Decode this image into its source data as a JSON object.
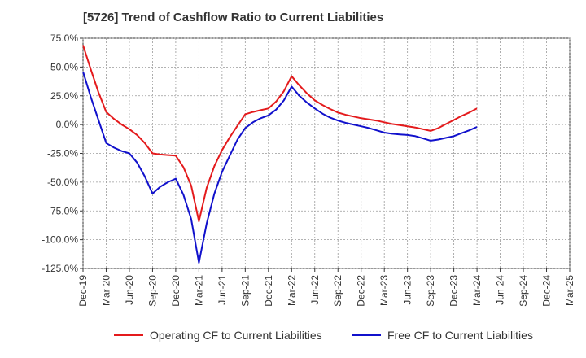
{
  "title": "[5726]  Trend of Cashflow Ratio to Current Liabilities",
  "chart_data": {
    "type": "line",
    "title": "[5726]  Trend of Cashflow Ratio to Current Liabilities",
    "x_ticks": [
      "Dec-19",
      "Mar-20",
      "Jun-20",
      "Sep-20",
      "Dec-20",
      "Mar-21",
      "Jun-21",
      "Sep-21",
      "Dec-21",
      "Mar-22",
      "Jun-22",
      "Sep-22",
      "Dec-22",
      "Mar-23",
      "Jun-23",
      "Sep-23",
      "Dec-23",
      "Mar-24",
      "Jun-24",
      "Sep-24",
      "Dec-24",
      "Mar-25"
    ],
    "y_ticks": [
      "75.0%",
      "50.0%",
      "25.0%",
      "0.0%",
      "-25.0%",
      "-50.0%",
      "-75.0%",
      "-100.0%",
      "-125.0%"
    ],
    "ylim": [
      -125,
      75
    ],
    "grid": true,
    "legend_position": "bottom",
    "x_month_index": [
      0,
      1,
      2,
      3,
      4,
      5,
      6,
      7,
      8,
      9,
      10,
      11,
      12,
      13,
      14,
      15,
      16,
      17,
      18,
      19,
      20,
      21,
      22,
      23,
      24,
      25,
      26,
      27,
      28,
      29,
      30,
      31,
      32,
      33,
      34,
      35,
      36,
      37,
      38,
      39,
      40,
      41,
      42,
      43,
      44,
      45,
      46,
      47,
      48,
      49,
      50,
      51
    ],
    "series": [
      {
        "name": "Operating CF to Current Liabilities",
        "color": "#e41a1c",
        "x": [
          "Dec-19",
          "Jan-20",
          "Feb-20",
          "Mar-20",
          "Apr-20",
          "May-20",
          "Jun-20",
          "Jul-20",
          "Aug-20",
          "Sep-20",
          "Oct-20",
          "Nov-20",
          "Dec-20",
          "Jan-21",
          "Feb-21",
          "Mar-21",
          "Apr-21",
          "May-21",
          "Jun-21",
          "Jul-21",
          "Aug-21",
          "Sep-21",
          "Oct-21",
          "Nov-21",
          "Dec-21",
          "Jan-22",
          "Feb-22",
          "Mar-22",
          "Apr-22",
          "May-22",
          "Jun-22",
          "Jul-22",
          "Aug-22",
          "Sep-22",
          "Oct-22",
          "Nov-22",
          "Dec-22",
          "Jan-23",
          "Feb-23",
          "Mar-23",
          "Apr-23",
          "May-23",
          "Jun-23",
          "Jul-23",
          "Aug-23",
          "Sep-23",
          "Oct-23",
          "Nov-23",
          "Dec-23",
          "Jan-24",
          "Feb-24",
          "Mar-24"
        ],
        "values": [
          69,
          48,
          28,
          11,
          5,
          0,
          -4,
          -9,
          -16,
          -25,
          -26,
          -26.5,
          -27,
          -37,
          -53,
          -84,
          -55,
          -36,
          -22,
          -11,
          -1,
          9,
          11,
          12.5,
          14,
          20,
          29,
          42,
          34,
          27,
          21,
          17,
          13.5,
          10.5,
          8.5,
          7,
          5.5,
          4.5,
          3.5,
          2,
          0.5,
          -0.5,
          -1.5,
          -2.5,
          -4,
          -5.5,
          -3,
          0.5,
          4,
          7.5,
          10.5,
          14
        ]
      },
      {
        "name": "Free CF to Current Liabilities",
        "color": "#1111cc",
        "x": [
          "Dec-19",
          "Jan-20",
          "Feb-20",
          "Mar-20",
          "Apr-20",
          "May-20",
          "Jun-20",
          "Jul-20",
          "Aug-20",
          "Sep-20",
          "Oct-20",
          "Nov-20",
          "Dec-20",
          "Jan-21",
          "Feb-21",
          "Mar-21",
          "Apr-21",
          "May-21",
          "Jun-21",
          "Jul-21",
          "Aug-21",
          "Sep-21",
          "Oct-21",
          "Nov-21",
          "Dec-21",
          "Jan-22",
          "Feb-22",
          "Mar-22",
          "Apr-22",
          "May-22",
          "Jun-22",
          "Jul-22",
          "Aug-22",
          "Sep-22",
          "Oct-22",
          "Nov-22",
          "Dec-22",
          "Jan-23",
          "Feb-23",
          "Mar-23",
          "Apr-23",
          "May-23",
          "Jun-23",
          "Jul-23",
          "Aug-23",
          "Sep-23",
          "Oct-23",
          "Nov-23",
          "Dec-23",
          "Jan-24",
          "Feb-24",
          "Mar-24"
        ],
        "values": [
          46,
          24,
          4,
          -16,
          -20,
          -23,
          -25,
          -33,
          -45,
          -60,
          -54,
          -50,
          -47,
          -61,
          -82,
          -120,
          -86,
          -60,
          -41,
          -27,
          -13,
          -3,
          2,
          5.5,
          8,
          13,
          21,
          33,
          25,
          19,
          14,
          9.5,
          6,
          3.5,
          1.5,
          0,
          -1.5,
          -3,
          -5,
          -7,
          -8,
          -8.5,
          -9,
          -10,
          -12,
          -14,
          -13,
          -11.5,
          -10,
          -7.5,
          -5,
          -2
        ]
      }
    ]
  }
}
